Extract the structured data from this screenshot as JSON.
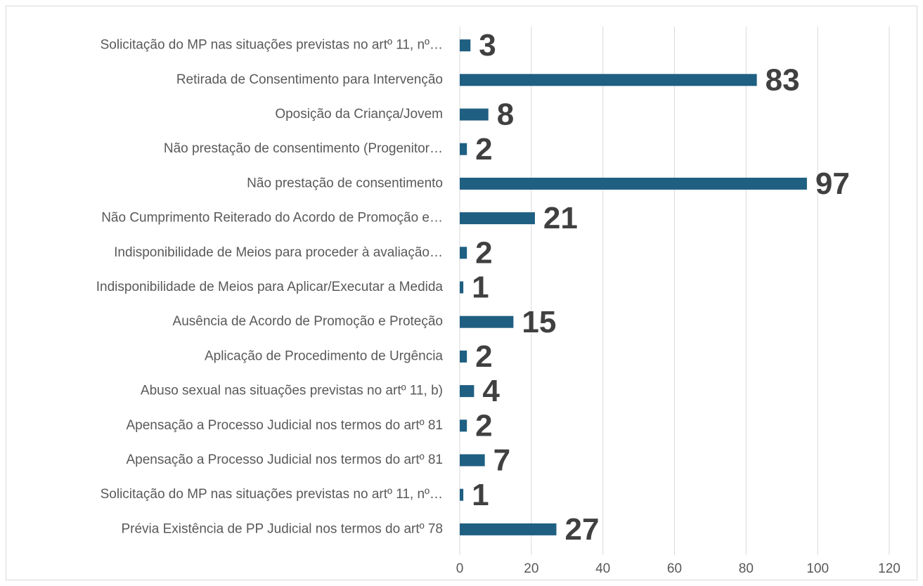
{
  "chart_data": {
    "type": "barh",
    "categories": [
      "Solicitação do MP nas situações previstas no artº 11, nº…",
      "Retirada de Consentimento para Intervenção",
      "Oposição da Criança/Jovem",
      "Não prestação de consentimento (Progenitor…",
      "Não prestação de consentimento",
      "Não Cumprimento Reiterado do Acordo de Promoção e…",
      "Indisponibilidade de Meios para proceder à avaliação…",
      "Indisponibilidade de Meios para Aplicar/Executar a Medida",
      "Ausência de Acordo de Promoção e Proteção",
      "Aplicação de Procedimento de Urgência",
      "Abuso sexual nas situações previstas no artº 11, b)",
      "Apensação a Processo Judicial nos termos do artº 81",
      "Apensação a Processo Judicial nos termos do artº 81",
      "Solicitação do MP nas situações previstas no artº 11, nº…",
      "Prévia Existência de PP Judicial nos termos do artº 78"
    ],
    "values": [
      3,
      83,
      8,
      2,
      97,
      21,
      2,
      1,
      15,
      2,
      4,
      2,
      7,
      1,
      27
    ],
    "color": "#1f5f82",
    "xlim": [
      0,
      120
    ],
    "xticks": [
      0,
      20,
      40,
      60,
      80,
      100,
      120
    ],
    "grid": true
  }
}
